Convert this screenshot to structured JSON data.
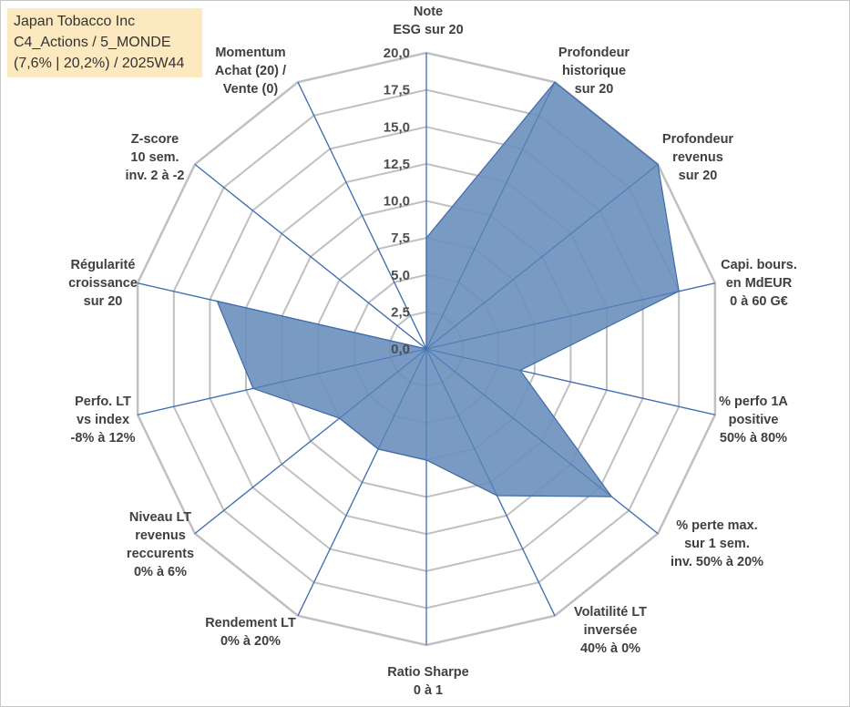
{
  "title_box": {
    "line1": "Japan Tobacco Inc",
    "line2": "C4_Actions / 5_MONDE",
    "line3": "(7,6% | 20,2%) / 2025W44"
  },
  "colors": {
    "fill": "#6a8fbd",
    "stroke": "#3f6aa8",
    "grid": "#c0c0c0",
    "spoke": "#3e6db5",
    "title_bg": "#fce9bf"
  },
  "chart_data": {
    "type": "radar",
    "rmin": 0,
    "rmax": 20,
    "tick_step": 2.5,
    "tick_labels": [
      "0,0",
      "2,5",
      "5,0",
      "7,5",
      "10,0",
      "12,5",
      "15,0",
      "17,5",
      "20,0"
    ],
    "series": [
      {
        "name": "Japan Tobacco Inc",
        "values": [
          7.5,
          20,
          20,
          17.5,
          6.5,
          16,
          11,
          7.5,
          7.5,
          7.5,
          12,
          14.5,
          0,
          0
        ]
      }
    ],
    "axes": [
      {
        "lines": [
          "Note",
          "ESG sur 20"
        ]
      },
      {
        "lines": [
          "Profondeur",
          "historique",
          "sur 20"
        ]
      },
      {
        "lines": [
          "Profondeur",
          "revenus",
          "sur 20"
        ]
      },
      {
        "lines": [
          "Capi. bours.",
          "en MdEUR",
          "0 à 60 G€"
        ]
      },
      {
        "lines": [
          "% perfo 1A",
          "positive",
          "50% à 80%"
        ]
      },
      {
        "lines": [
          "% perte max.",
          "sur 1 sem.",
          "inv. 50% à 20%"
        ]
      },
      {
        "lines": [
          "Volatilité LT",
          "inversée",
          "40% à 0%"
        ]
      },
      {
        "lines": [
          "Ratio Sharpe",
          "0 à 1"
        ]
      },
      {
        "lines": [
          "Rendement LT",
          "0% à 20%"
        ]
      },
      {
        "lines": [
          "Niveau LT",
          "revenus",
          "reccurents",
          "0% à 6%"
        ]
      },
      {
        "lines": [
          "Perfo. LT",
          "vs index",
          "-8% à 12%"
        ]
      },
      {
        "lines": [
          "Régularité",
          "croissance",
          "sur 20"
        ]
      },
      {
        "lines": [
          "Z-score",
          "10 sem.",
          "inv. 2 à -2"
        ]
      },
      {
        "lines": [
          "Momentum",
          "Achat (20) /",
          "Vente (0)"
        ]
      }
    ]
  }
}
